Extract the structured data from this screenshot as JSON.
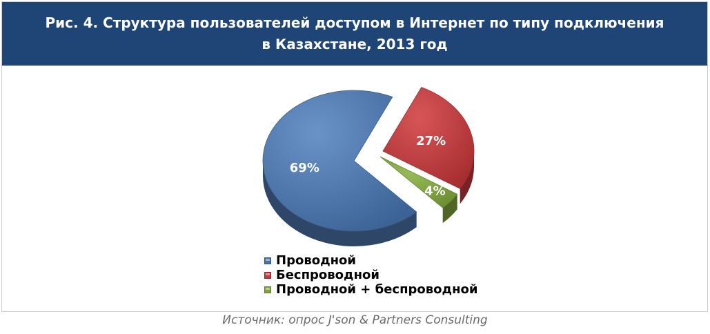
{
  "title": "Рис. 4. Структура пользователей доступом в Интернет по типу подключения в Казахстане, 2013 год",
  "source": "Источник: опрос J'son & Partners Consulting",
  "chart_data": {
    "type": "pie",
    "categories": [
      "Проводной",
      "Беспроводной",
      "Проводной + беспроводной"
    ],
    "values": [
      69,
      27,
      4
    ],
    "labels": [
      "69%",
      "27%",
      "4%"
    ],
    "colors": [
      "#4a72a8",
      "#c0393b",
      "#7fa43e"
    ],
    "exploded": [
      "Беспроводной",
      "Проводной + беспроводной"
    ],
    "legend_position": "bottom"
  }
}
